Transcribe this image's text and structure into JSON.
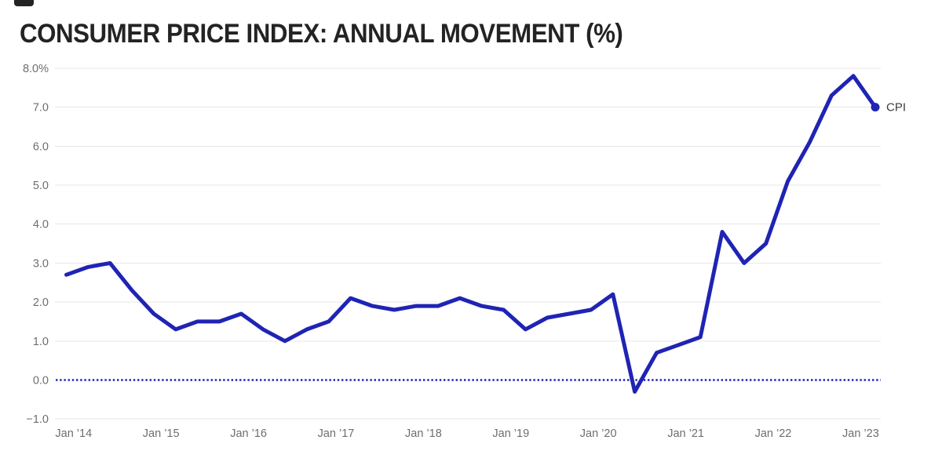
{
  "page": {
    "title": "CONSUMER PRICE INDEX: ANNUAL MOVEMENT (%)"
  },
  "colors": {
    "line": "#1f24b4",
    "grid": "#e7e7e7",
    "axis_text": "#6e6e6e",
    "title_text": "#232323",
    "end_label_text": "#3c3c3c",
    "background": "#ffffff",
    "top_mark": "#232323"
  },
  "chart_data": {
    "type": "line",
    "title": "CONSUMER PRICE INDEX: ANNUAL MOVEMENT (%)",
    "xlabel": "",
    "ylabel": "",
    "ylim": [
      -1.0,
      8.0
    ],
    "grid": "horizontal-only",
    "legend_position": "end-of-line",
    "zero_line_style": "dotted-blue",
    "y_ticks": [
      {
        "value": 8,
        "label": "8.0%"
      },
      {
        "value": 7,
        "label": "7.0"
      },
      {
        "value": 6,
        "label": "6.0"
      },
      {
        "value": 5,
        "label": "5.0"
      },
      {
        "value": 4,
        "label": "4.0"
      },
      {
        "value": 3,
        "label": "3.0"
      },
      {
        "value": 2,
        "label": "2.0"
      },
      {
        "value": 1,
        "label": "1.0"
      },
      {
        "value": 0,
        "label": "0.0"
      },
      {
        "value": -1,
        "label": "−1.0"
      }
    ],
    "x_tick_labels": [
      "Jan ’14",
      "Jan ’15",
      "Jan ’16",
      "Jan ’17",
      "Jan ’18",
      "Jan ’19",
      "Jan ’20",
      "Jan ’21",
      "Jan ’22",
      "Jan ’23"
    ],
    "series": [
      {
        "name": "CPI",
        "color": "#1f24b4",
        "marker": "end-dot",
        "x": [
          "2013-Q4",
          "2014-Q1",
          "2014-Q2",
          "2014-Q3",
          "2014-Q4",
          "2015-Q1",
          "2015-Q2",
          "2015-Q3",
          "2015-Q4",
          "2016-Q1",
          "2016-Q2",
          "2016-Q3",
          "2016-Q4",
          "2017-Q1",
          "2017-Q2",
          "2017-Q3",
          "2017-Q4",
          "2018-Q1",
          "2018-Q2",
          "2018-Q3",
          "2018-Q4",
          "2019-Q1",
          "2019-Q2",
          "2019-Q3",
          "2019-Q4",
          "2020-Q1",
          "2020-Q2",
          "2020-Q3",
          "2020-Q4",
          "2021-Q1",
          "2021-Q2",
          "2021-Q3",
          "2021-Q4",
          "2022-Q1",
          "2022-Q2",
          "2022-Q3",
          "2022-Q4",
          "2023-Q1"
        ],
        "values": [
          2.7,
          2.9,
          3.0,
          2.3,
          1.7,
          1.3,
          1.5,
          1.5,
          1.7,
          1.3,
          1.0,
          1.3,
          1.5,
          2.1,
          1.9,
          1.8,
          1.9,
          1.9,
          2.1,
          1.9,
          1.8,
          1.3,
          1.6,
          1.7,
          1.8,
          2.2,
          -0.3,
          0.7,
          0.9,
          1.1,
          3.8,
          3.0,
          3.5,
          5.1,
          6.1,
          7.3,
          7.8,
          7.0
        ]
      }
    ]
  }
}
